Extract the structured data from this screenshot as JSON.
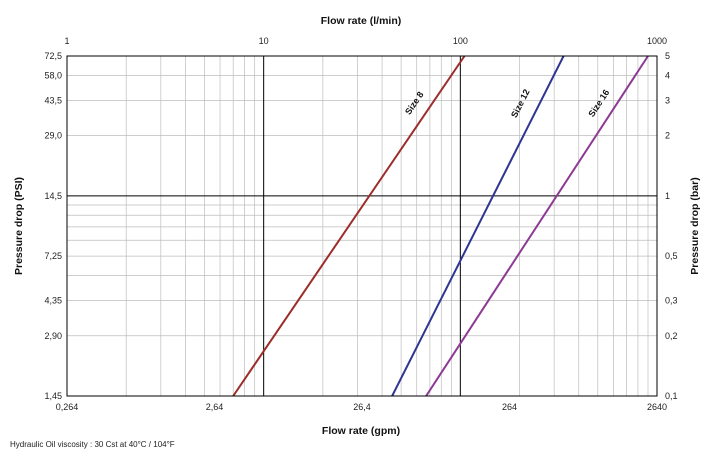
{
  "chart_data": {
    "type": "line",
    "title": "",
    "x_top": {
      "label": "Flow rate (l/min)",
      "scale": "log",
      "range": [
        1,
        1000
      ],
      "ticks": [
        "1",
        "10",
        "100",
        "1000"
      ]
    },
    "x_bottom": {
      "label": "Flow rate (gpm)",
      "scale": "log",
      "range": [
        0.264,
        264
      ],
      "ticks": [
        "0,264",
        "2,64",
        "26,4",
        "264",
        "2640"
      ]
    },
    "y_left": {
      "label": "Pressure drop (PSI)",
      "scale": "log",
      "range": [
        1.45,
        72.5
      ],
      "ticks": [
        "1,45",
        "2,90",
        "4,35",
        "7,25",
        "14,5",
        "29,0",
        "43,5",
        "58,0",
        "72,5"
      ]
    },
    "y_right": {
      "label": "Pressure drop (bar)",
      "scale": "log",
      "range": [
        0.1,
        5
      ],
      "ticks": [
        "0,1",
        "0,2",
        "0,3",
        "0,5",
        "1",
        "2",
        "3",
        "4",
        "5"
      ]
    },
    "grid": true,
    "series": [
      {
        "name": "Size 8",
        "color": "#9b2d2a",
        "x_lpm": [
          7,
          105
        ],
        "y_bar": [
          0.1,
          5
        ]
      },
      {
        "name": "Size 12",
        "color": "#2f3591",
        "x_lpm": [
          45,
          335
        ],
        "y_bar": [
          0.1,
          5
        ]
      },
      {
        "name": "Size 16",
        "color": "#8c3a93",
        "x_lpm": [
          67,
          900
        ],
        "y_bar": [
          0.1,
          5
        ]
      }
    ]
  },
  "footnote": "Hydraulic Oil viscosity : 30 Cst at 40°C / 104°F"
}
